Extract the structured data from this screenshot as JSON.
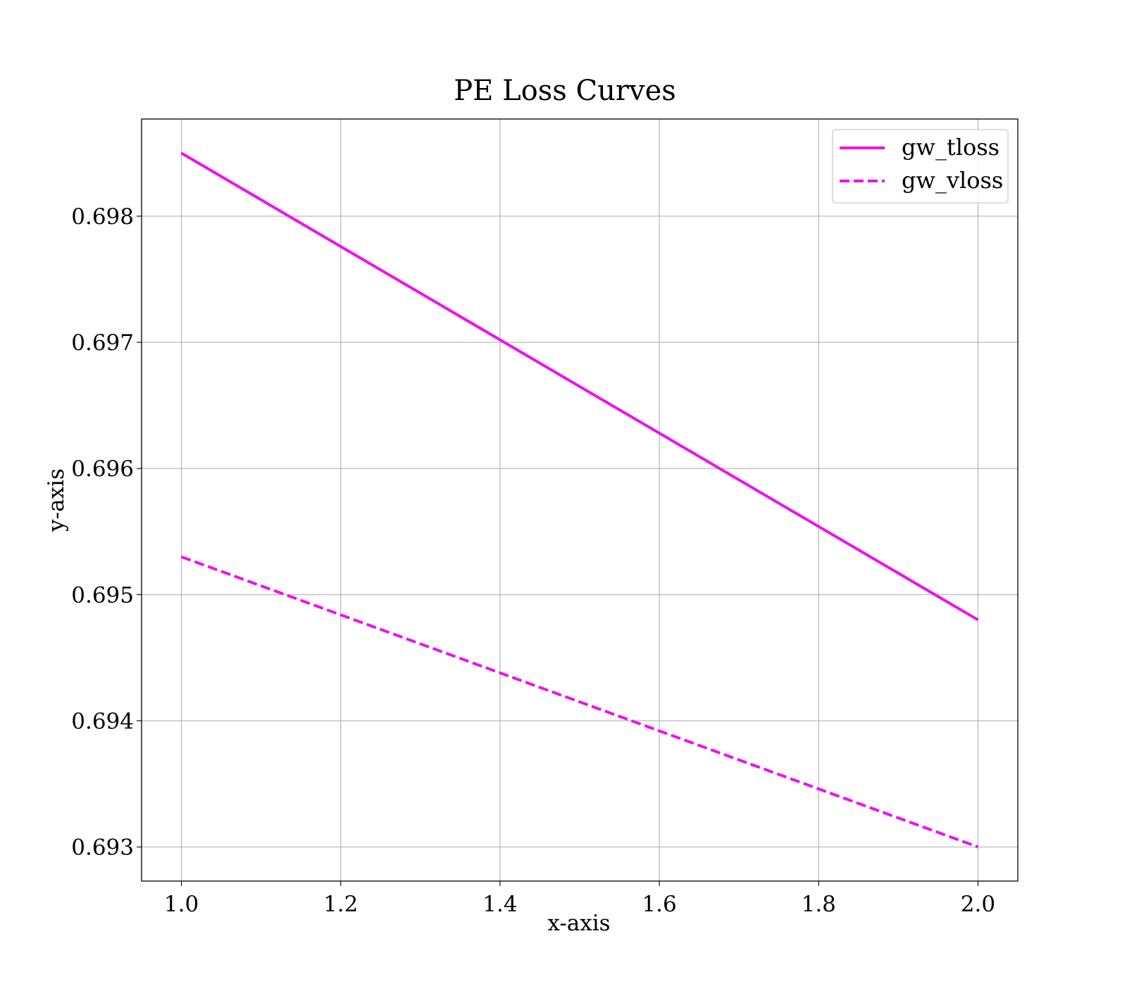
{
  "chart_data": {
    "type": "line",
    "title": "PE Loss Curves",
    "xlabel": "x-axis",
    "ylabel": "y-axis",
    "xlim": [
      0.95,
      2.05
    ],
    "ylim": [
      0.69273,
      0.69877
    ],
    "xticks": [
      1.0,
      1.2,
      1.4,
      1.6,
      1.8,
      2.0
    ],
    "xtick_labels": [
      "1.0",
      "1.2",
      "1.4",
      "1.6",
      "1.8",
      "2.0"
    ],
    "yticks": [
      0.693,
      0.694,
      0.695,
      0.696,
      0.697,
      0.698
    ],
    "ytick_labels": [
      "0.693",
      "0.694",
      "0.695",
      "0.696",
      "0.697",
      "0.698"
    ],
    "grid": true,
    "legend_position": "top-right",
    "series": [
      {
        "name": "gw_tloss",
        "x": [
          1.0,
          2.0
        ],
        "y": [
          0.6985,
          0.6948
        ],
        "color": "#ee10ee",
        "style": "solid"
      },
      {
        "name": "gw_vloss",
        "x": [
          1.0,
          2.0
        ],
        "y": [
          0.6953,
          0.693
        ],
        "color": "#ee10ee",
        "style": "dashed"
      }
    ]
  }
}
